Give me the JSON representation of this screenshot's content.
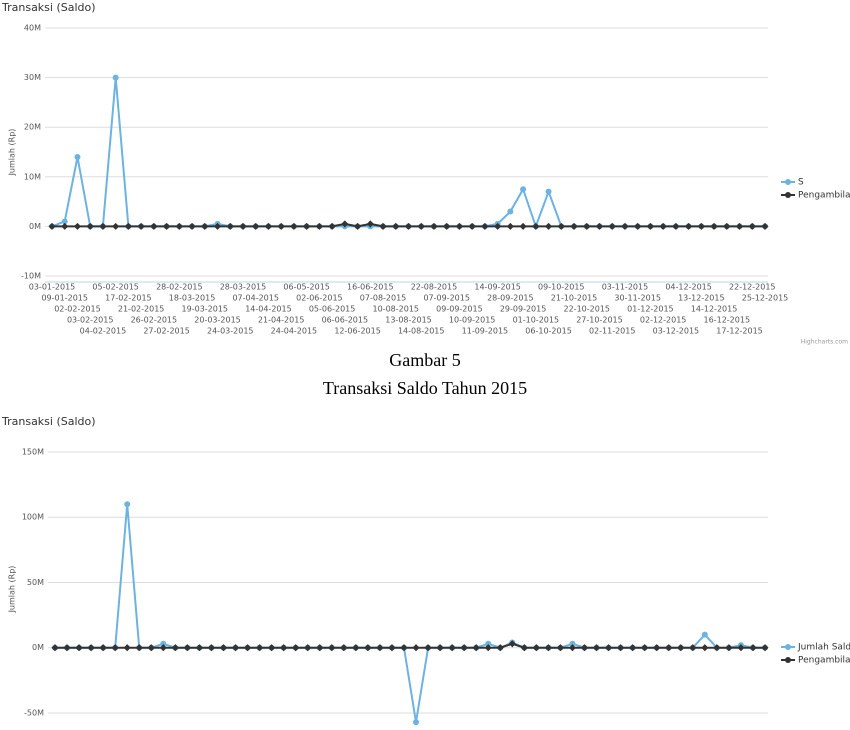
{
  "chart_data": [
    {
      "type": "line",
      "title": "Transaksi (Saldo)",
      "y_label": "Jumlah (Rp)",
      "credit": "Highcharts.com",
      "categories": [
        "03-01-2015",
        "09-01-2015",
        "02-02-2015",
        "03-02-2015",
        "04-02-2015",
        "05-02-2015",
        "17-02-2015",
        "21-02-2015",
        "26-02-2015",
        "27-02-2015",
        "28-02-2015",
        "18-03-2015",
        "19-03-2015",
        "20-03-2015",
        "24-03-2015",
        "28-03-2015",
        "07-04-2015",
        "14-04-2015",
        "21-04-2015",
        "24-04-2015",
        "06-05-2015",
        "02-06-2015",
        "05-06-2015",
        "06-06-2015",
        "12-06-2015",
        "16-06-2015",
        "07-08-2015",
        "10-08-2015",
        "13-08-2015",
        "14-08-2015",
        "22-08-2015",
        "07-09-2015",
        "09-09-2015",
        "10-09-2015",
        "11-09-2015",
        "14-09-2015",
        "28-09-2015",
        "29-09-2015",
        "01-10-2015",
        "06-10-2015",
        "09-10-2015",
        "21-10-2015",
        "22-10-2015",
        "27-10-2015",
        "02-11-2015",
        "03-11-2015",
        "30-11-2015",
        "01-12-2015",
        "02-12-2015",
        "03-12-2015",
        "04-12-2015",
        "13-12-2015",
        "14-12-2015",
        "16-12-2015",
        "17-12-2015",
        "22-12-2015",
        "25-12-2015"
      ],
      "series": [
        {
          "name": "S",
          "color": "#6cb3e0",
          "values": [
            0,
            1000000,
            14000000,
            0,
            0,
            30000000,
            0,
            0,
            0,
            0,
            0,
            0,
            0,
            500000,
            0,
            0,
            0,
            0,
            0,
            0,
            0,
            0,
            0,
            0,
            0,
            0,
            0,
            0,
            0,
            0,
            0,
            0,
            0,
            0,
            0,
            500000,
            3000000,
            7500000,
            0,
            7000000,
            0,
            0,
            0,
            0,
            0,
            0,
            0,
            0,
            0,
            0,
            0,
            0,
            0,
            0,
            0,
            0,
            0
          ]
        },
        {
          "name": "Pengambilan",
          "color": "#333333",
          "values": [
            0,
            0,
            0,
            0,
            0,
            0,
            0,
            0,
            0,
            0,
            0,
            0,
            0,
            0,
            0,
            0,
            0,
            0,
            0,
            0,
            0,
            0,
            0,
            500000,
            0,
            500000,
            0,
            0,
            0,
            0,
            0,
            0,
            0,
            0,
            0,
            0,
            0,
            0,
            0,
            0,
            0,
            0,
            0,
            0,
            0,
            0,
            0,
            0,
            0,
            0,
            0,
            0,
            0,
            0,
            0,
            0,
            0
          ]
        }
      ],
      "ylim": [
        -10000000,
        40000000
      ],
      "yticks": [
        {
          "value": -10000000,
          "label": "-10M"
        },
        {
          "value": 0,
          "label": "0M"
        },
        {
          "value": 10000000,
          "label": "10M"
        },
        {
          "value": 20000000,
          "label": "20M"
        },
        {
          "value": 30000000,
          "label": "30M"
        },
        {
          "value": 40000000,
          "label": "40M"
        }
      ],
      "grid": true,
      "legend": "right"
    },
    {
      "type": "line",
      "title": "Transaksi (Saldo)",
      "y_label": "Jumlah (Rp)",
      "categories": [
        null,
        null,
        null,
        null,
        null,
        null,
        null,
        null,
        null,
        null,
        null,
        null,
        null,
        null,
        null,
        null,
        null,
        null,
        null,
        null,
        null,
        null,
        null,
        null,
        null,
        null,
        null,
        null,
        null,
        null,
        null,
        null,
        null,
        null,
        null,
        null,
        null,
        null,
        null,
        null,
        null,
        null,
        null,
        null,
        null,
        null,
        null,
        null,
        null,
        null,
        null,
        null,
        null,
        null,
        null,
        null,
        null,
        null,
        null,
        null
      ],
      "series": [
        {
          "name": "Jumlah Saldo",
          "color": "#6cb3e0",
          "values": [
            0,
            0,
            0,
            0,
            0,
            0,
            110000000,
            0,
            0,
            3000000,
            0,
            0,
            0,
            0,
            0,
            0,
            0,
            0,
            0,
            0,
            0,
            0,
            0,
            0,
            0,
            0,
            0,
            0,
            0,
            0,
            -57000000,
            0,
            0,
            0,
            0,
            0,
            3000000,
            0,
            4000000,
            0,
            0,
            0,
            0,
            3000000,
            0,
            0,
            0,
            0,
            0,
            0,
            0,
            0,
            0,
            0,
            10000000,
            0,
            0,
            2000000,
            0,
            0
          ]
        },
        {
          "name": "Pengambilan",
          "color": "#333333",
          "values": [
            0,
            0,
            0,
            0,
            0,
            0,
            0,
            0,
            0,
            0,
            0,
            0,
            0,
            0,
            0,
            0,
            0,
            0,
            0,
            0,
            0,
            0,
            0,
            0,
            0,
            0,
            0,
            0,
            0,
            0,
            0,
            0,
            0,
            0,
            0,
            0,
            0,
            0,
            3000000,
            0,
            0,
            0,
            0,
            0,
            0,
            0,
            0,
            0,
            0,
            0,
            0,
            0,
            0,
            0,
            0,
            0,
            0,
            0,
            0,
            0
          ]
        }
      ],
      "ylim": [
        -60000000,
        150000000
      ],
      "yticks": [
        {
          "value": -50000000,
          "label": "-50M"
        },
        {
          "value": 0,
          "label": "0M"
        },
        {
          "value": 50000000,
          "label": "50M"
        },
        {
          "value": 100000000,
          "label": "100M"
        },
        {
          "value": 150000000,
          "label": "150M"
        }
      ],
      "grid": true,
      "legend": "right"
    }
  ],
  "caption": {
    "figure": "Gambar 5",
    "text": "Transaksi Saldo Tahun 2015"
  }
}
